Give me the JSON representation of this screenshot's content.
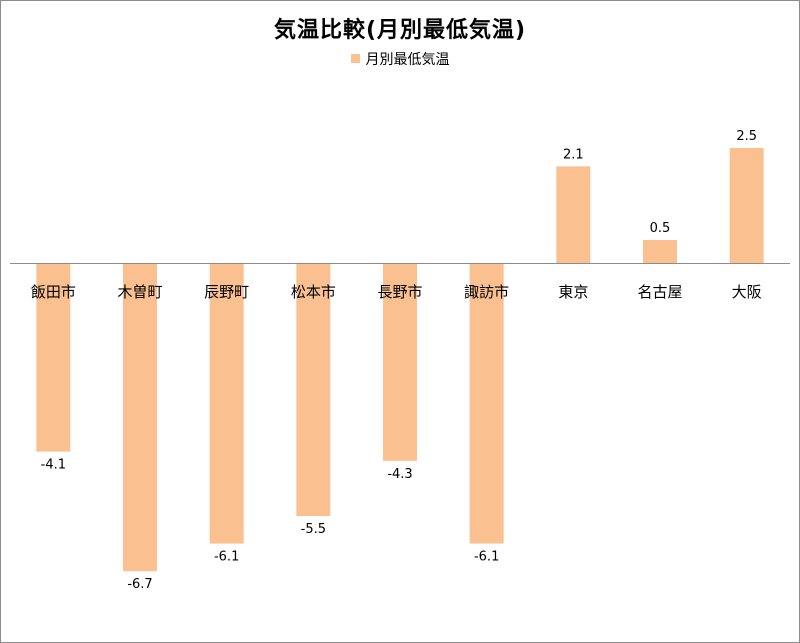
{
  "chart_data": {
    "type": "bar",
    "title": "気温比較(月別最低気温)",
    "categories": [
      "飯田市",
      "木曽町",
      "辰野町",
      "松本市",
      "長野市",
      "諏訪市",
      "東京",
      "名古屋",
      "大阪"
    ],
    "series": [
      {
        "name": "月別最低気温",
        "values": [
          -4.1,
          -6.7,
          -6.1,
          -5.5,
          -4.3,
          -6.1,
          2.1,
          0.5,
          2.5
        ],
        "labels": [
          "-4.1",
          "-6.7",
          "-6.1",
          "-5.5",
          "-4.3",
          "-6.1",
          "2.1",
          "0.5",
          "2.5"
        ],
        "color": "#FAC090"
      }
    ],
    "ylim": [
      -7.5,
      3.5
    ],
    "grid": false,
    "legend_position": "top"
  }
}
